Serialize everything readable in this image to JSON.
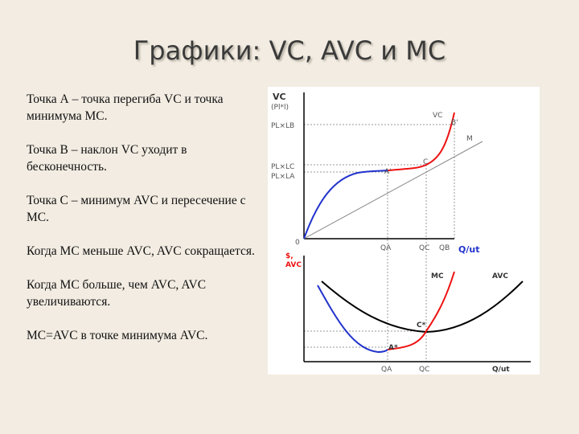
{
  "header": {
    "title": "Графики: VC, AVC и MC"
  },
  "paragraphs": [
    "Точка А – точка перегиба VC и точка минимума МС.",
    "Точка В – наклон VC уходит в бесконечность.",
    "Точка С – минимум AVC и пересечение с МС.",
    "Когда МС меньше AVC, AVC сокращается.",
    "Когда МС больше, чем AVC, AVC увеличиваются.",
    "МС=AVC в точке минимума AVC."
  ],
  "diagram": {
    "top": {
      "y_label": "VC",
      "y_sub": "(Pl*l)",
      "level_b": "PL×LB",
      "level_c": "PL×LC",
      "level_a": "PL×LA",
      "curve": "VC",
      "point_b": "B'",
      "ray": "M",
      "point_c": "C",
      "point_a": "A'",
      "origin": "0",
      "qa": "QA",
      "qc": "QC",
      "qb": "QB",
      "x_label": "Q/ut"
    },
    "bottom": {
      "y_label_1": "$,",
      "y_label_2": "AVC",
      "mc": "MC",
      "avc": "AVC",
      "point_c": "C*",
      "point_a": "A*",
      "qa": "QA",
      "qc": "QC",
      "x_label": "Q/ut"
    }
  }
}
